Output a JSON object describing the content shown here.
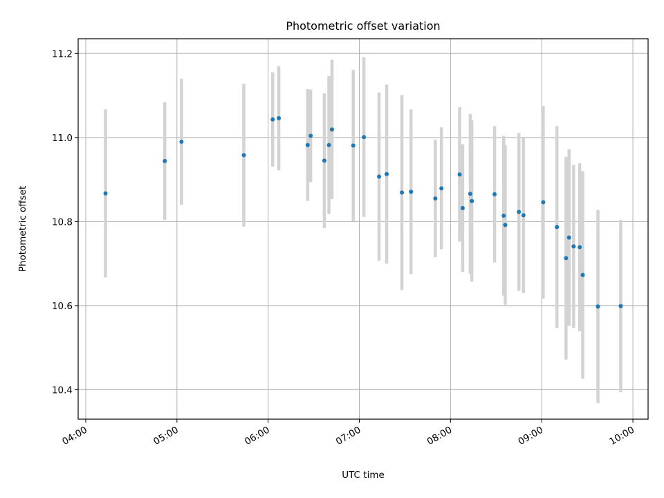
{
  "chart_data": {
    "type": "scatter",
    "title": "Photometric offset variation",
    "xlabel": "UTC time",
    "ylabel": "Photometric offset",
    "x_ticks": [
      "04:00",
      "05:00",
      "06:00",
      "07:00",
      "08:00",
      "09:00",
      "10:00"
    ],
    "y_ticks": [
      "10.4",
      "10.6",
      "10.8",
      "11.0",
      "11.2"
    ],
    "xlim": [
      "03:55",
      "10:10"
    ],
    "ylim": [
      10.33,
      11.235
    ],
    "grid": true,
    "point_color": "#1f77b4",
    "errorbar_color": "#d3d3d3",
    "points": [
      {
        "t": "04:13",
        "y": 10.867,
        "err": 0.2
      },
      {
        "t": "04:52",
        "y": 10.944,
        "err": 0.14
      },
      {
        "t": "05:03",
        "y": 10.99,
        "err": 0.15
      },
      {
        "t": "05:44",
        "y": 10.958,
        "err": 0.17
      },
      {
        "t": "06:03",
        "y": 11.043,
        "err": 0.112
      },
      {
        "t": "06:07",
        "y": 11.046,
        "err": 0.124
      },
      {
        "t": "06:26",
        "y": 10.982,
        "err": 0.133
      },
      {
        "t": "06:28",
        "y": 11.004,
        "err": 0.11
      },
      {
        "t": "06:37",
        "y": 10.945,
        "err": 0.16
      },
      {
        "t": "06:40",
        "y": 10.982,
        "err": 0.164
      },
      {
        "t": "06:42",
        "y": 11.019,
        "err": 0.166
      },
      {
        "t": "06:56",
        "y": 10.981,
        "err": 0.18
      },
      {
        "t": "07:03",
        "y": 11.001,
        "err": 0.19
      },
      {
        "t": "07:13",
        "y": 10.907,
        "err": 0.2
      },
      {
        "t": "07:18",
        "y": 10.913,
        "err": 0.213
      },
      {
        "t": "07:28",
        "y": 10.869,
        "err": 0.232
      },
      {
        "t": "07:34",
        "y": 10.871,
        "err": 0.196
      },
      {
        "t": "07:50",
        "y": 10.855,
        "err": 0.14
      },
      {
        "t": "07:54",
        "y": 10.879,
        "err": 0.145
      },
      {
        "t": "08:06",
        "y": 10.912,
        "err": 0.16
      },
      {
        "t": "08:08",
        "y": 10.832,
        "err": 0.152
      },
      {
        "t": "08:13",
        "y": 10.866,
        "err": 0.19
      },
      {
        "t": "08:14",
        "y": 10.849,
        "err": 0.192
      },
      {
        "t": "08:29",
        "y": 10.865,
        "err": 0.162
      },
      {
        "t": "08:35",
        "y": 10.814,
        "err": 0.19
      },
      {
        "t": "08:36",
        "y": 10.792,
        "err": 0.19
      },
      {
        "t": "08:45",
        "y": 10.823,
        "err": 0.188
      },
      {
        "t": "08:48",
        "y": 10.815,
        "err": 0.185
      },
      {
        "t": "09:01",
        "y": 10.846,
        "err": 0.229
      },
      {
        "t": "09:10",
        "y": 10.787,
        "err": 0.24
      },
      {
        "t": "09:16",
        "y": 10.713,
        "err": 0.241
      },
      {
        "t": "09:18",
        "y": 10.762,
        "err": 0.21
      },
      {
        "t": "09:21",
        "y": 10.741,
        "err": 0.194
      },
      {
        "t": "09:25",
        "y": 10.739,
        "err": 0.2
      },
      {
        "t": "09:27",
        "y": 10.673,
        "err": 0.247
      },
      {
        "t": "09:37",
        "y": 10.598,
        "err": 0.23
      },
      {
        "t": "09:52",
        "y": 10.599,
        "err": 0.205
      }
    ]
  }
}
